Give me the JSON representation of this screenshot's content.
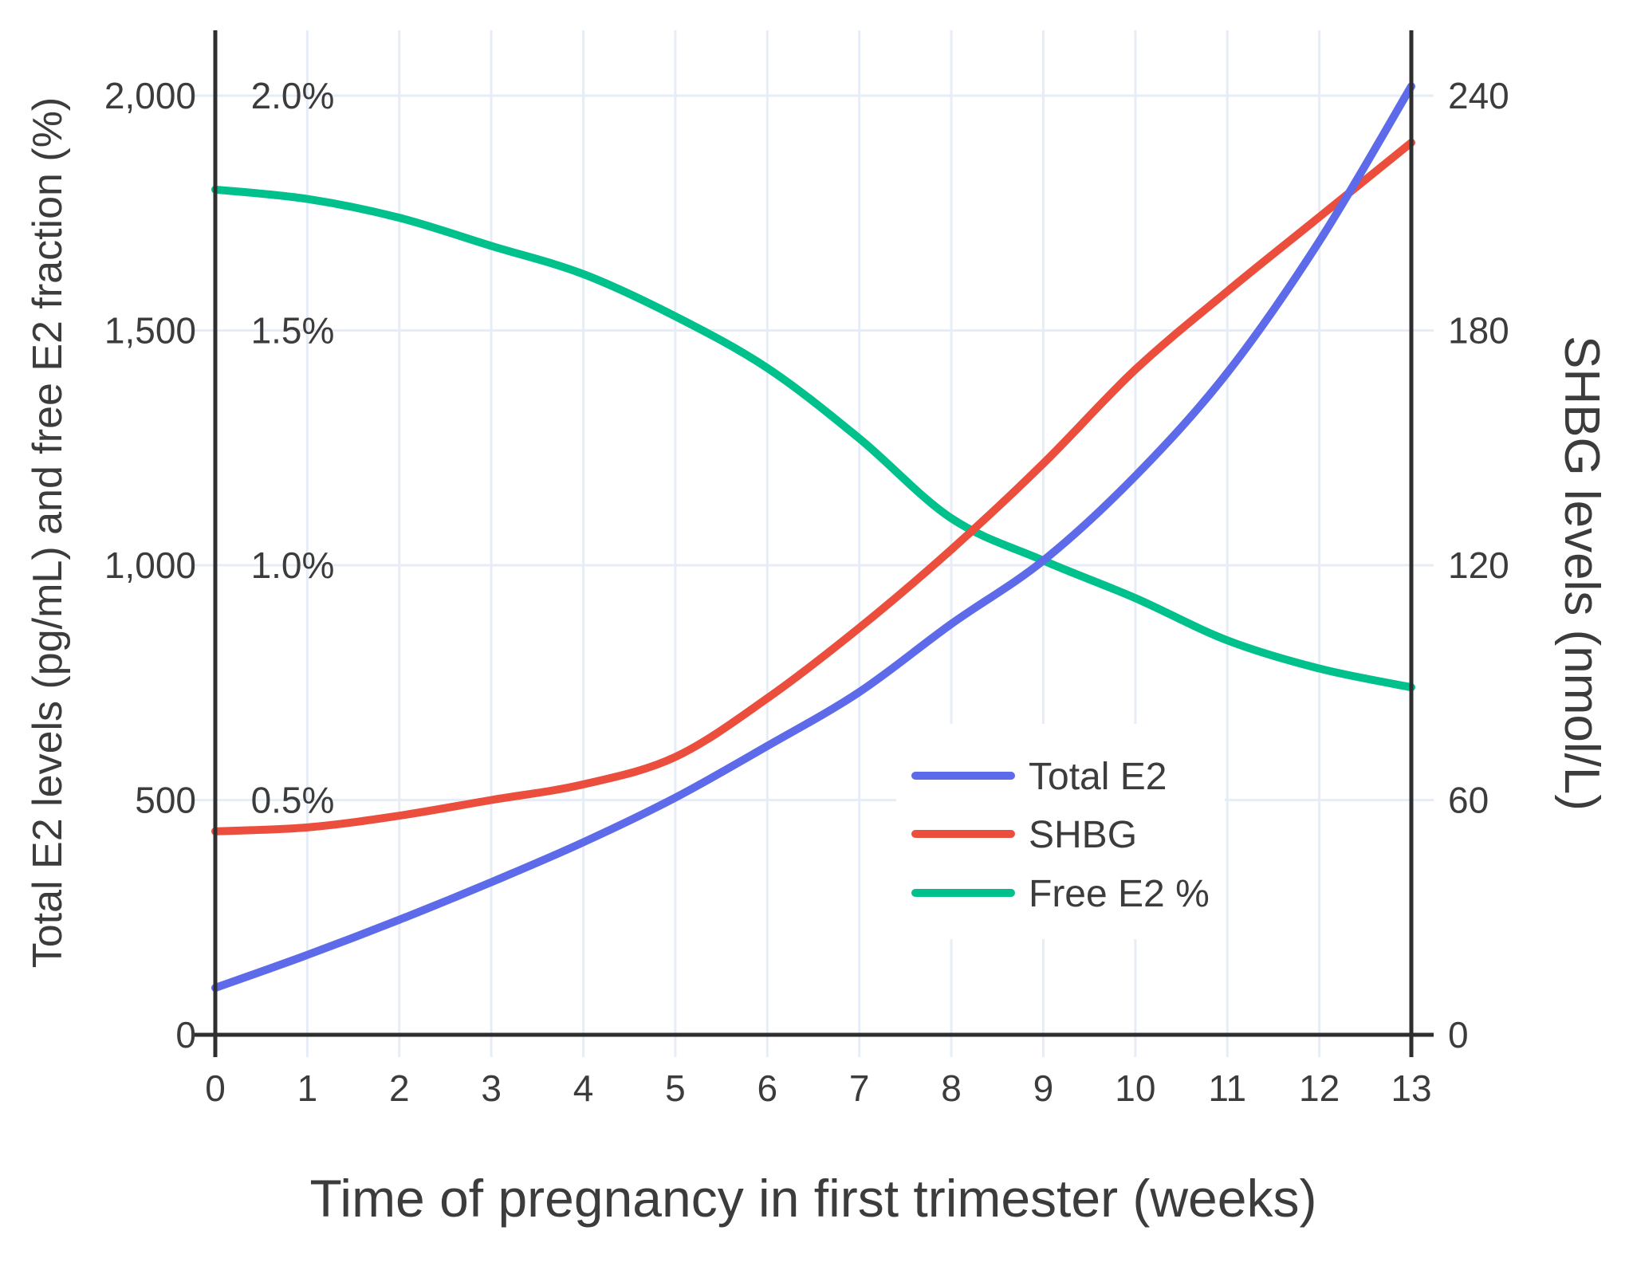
{
  "chart_data": {
    "type": "line",
    "title": "",
    "xlabel": "Time of pregnancy in first trimester (weeks)",
    "ylabel_left": "Total E2 levels (pg/mL) and free E2 fraction (%)",
    "ylabel_right": "SHBG levels (nmol/L)",
    "x": [
      0,
      1,
      2,
      3,
      4,
      5,
      6,
      7,
      8,
      9,
      10,
      11,
      12,
      13
    ],
    "x_tick_labels": [
      "0",
      "1",
      "2",
      "3",
      "4",
      "5",
      "6",
      "7",
      "8",
      "9",
      "10",
      "11",
      "12",
      "13"
    ],
    "y_left_ticks": {
      "values": [
        0,
        500,
        1000,
        1500,
        2000
      ],
      "labels": [
        "0",
        "500",
        "1,000",
        "1,500",
        "2,000"
      ]
    },
    "y_left_pct_labels": {
      "values": [
        500,
        1000,
        1500,
        2000
      ],
      "labels": [
        "0.5%",
        "1.0%",
        "1.5%",
        "2.0%"
      ]
    },
    "y_right_ticks": {
      "values": [
        0,
        60,
        120,
        180,
        240
      ],
      "labels": [
        "0",
        "60",
        "120",
        "180",
        "240"
      ]
    },
    "ylim_left": [
      0,
      2135
    ],
    "ylim_right": [
      0,
      256
    ],
    "grid": true,
    "legend_position": "inside-bottom-right",
    "series": [
      {
        "name": "Total E2",
        "yaxis": "left",
        "unit": "pg/mL",
        "color": "#5D6BEA",
        "values": [
          100,
          170,
          245,
          325,
          410,
          505,
          615,
          730,
          875,
          1010,
          1190,
          1410,
          1690,
          2020
        ]
      },
      {
        "name": "SHBG",
        "yaxis": "right",
        "unit": "nmol/L",
        "color": "#EB4E3D",
        "values": [
          52,
          53,
          56,
          60,
          64,
          71,
          86,
          104,
          124,
          146,
          170,
          190,
          209,
          228
        ]
      },
      {
        "name": "Free E2 %",
        "yaxis": "left-percent",
        "unit": "%",
        "color": "#00C18C",
        "values": [
          1.8,
          1.78,
          1.74,
          1.68,
          1.62,
          1.53,
          1.42,
          1.27,
          1.1,
          1.01,
          0.93,
          0.84,
          0.78,
          0.74
        ]
      }
    ]
  },
  "colors": {
    "background": "#FFFFFF",
    "grid": "#E7EDF6",
    "axis": "#2E2E2E",
    "text": "#3C3C3C",
    "legend_background": "#FFFFFF"
  }
}
